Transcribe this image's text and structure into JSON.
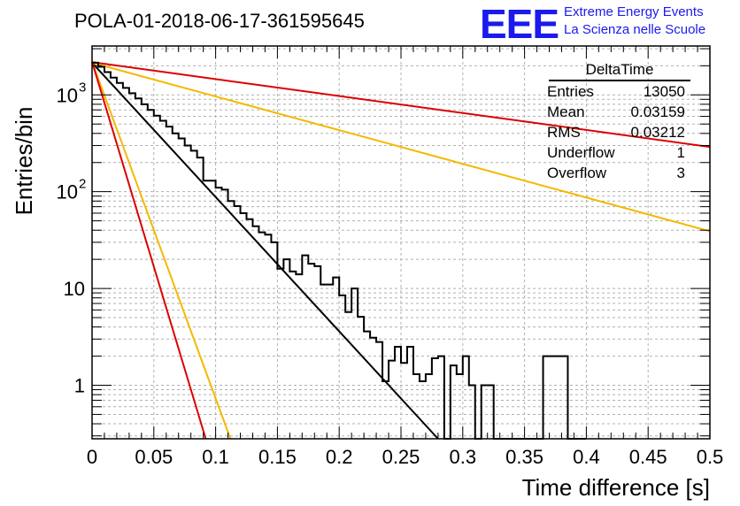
{
  "header": {
    "title": "POLA-01-2018-06-17-361595645",
    "logo_text": "EEE",
    "logo_line1": "Extreme Energy Events",
    "logo_line2": "La Scienza nelle Scuole"
  },
  "stats_box": {
    "title": "DeltaTime",
    "rows": [
      {
        "label": "Entries",
        "value": "13050"
      },
      {
        "label": "Mean",
        "value": "0.03159"
      },
      {
        "label": "RMS",
        "value": "0.03212"
      },
      {
        "label": "Underflow",
        "value": "1"
      },
      {
        "label": "Overflow",
        "value": "3"
      }
    ]
  },
  "chart_data": {
    "type": "line",
    "title": "POLA-01-2018-06-17-361595645",
    "xlabel": "Time difference [s]",
    "ylabel": "Entries/bin",
    "xlim": [
      0,
      0.5
    ],
    "ylim": [
      0.28,
      3200
    ],
    "y_scale": "log",
    "grid": true,
    "x_ticks": [
      "0",
      "0.05",
      "0.1",
      "0.15",
      "0.2",
      "0.25",
      "0.3",
      "0.35",
      "0.4",
      "0.45",
      "0.5"
    ],
    "y_ticks": [
      "1",
      "10",
      "10^2",
      "10^3"
    ],
    "histogram": {
      "name": "DeltaTime",
      "bin_width": 0.005,
      "color": "#000000",
      "values": [
        2150,
        1950,
        1720,
        1510,
        1330,
        1180,
        1040,
        920,
        800,
        700,
        610,
        540,
        470,
        400,
        355,
        300,
        265,
        225,
        130,
        130,
        110,
        105,
        80,
        71,
        60,
        52,
        44,
        38,
        36,
        30,
        16,
        20,
        15,
        14,
        22,
        18,
        17,
        11,
        11,
        13,
        8.5,
        5.7,
        10,
        5.1,
        3.6,
        3.1,
        2.8,
        1.1,
        1.8,
        2.5,
        1.7,
        2.5,
        1.3,
        1.1,
        1.3,
        1.9,
        2.0,
        0.28,
        1.6,
        1.3,
        2.0,
        1.0,
        0.28,
        1.0,
        1.0,
        0.28,
        0.28,
        0.28,
        0.28,
        0.28,
        0.28,
        0.28,
        0.28,
        2.0,
        2.0,
        2.0,
        2.0,
        0.28,
        0.28,
        0.28
      ]
    },
    "series": [
      {
        "color": "#000000",
        "x": [
          0,
          0.28
        ],
        "y": [
          2150,
          0.28
        ]
      },
      {
        "color": "#dd0000",
        "x": [
          0,
          0.5
        ],
        "y": [
          2180,
          290
        ]
      },
      {
        "color": "#f5b800",
        "x": [
          0,
          0.5
        ],
        "y": [
          2150,
          39
        ]
      },
      {
        "color": "#f5b800",
        "x": [
          0,
          0.112
        ],
        "y": [
          2200,
          0.28
        ]
      },
      {
        "color": "#dd0000",
        "x": [
          0,
          0.092
        ],
        "y": [
          2200,
          0.28
        ]
      }
    ]
  }
}
